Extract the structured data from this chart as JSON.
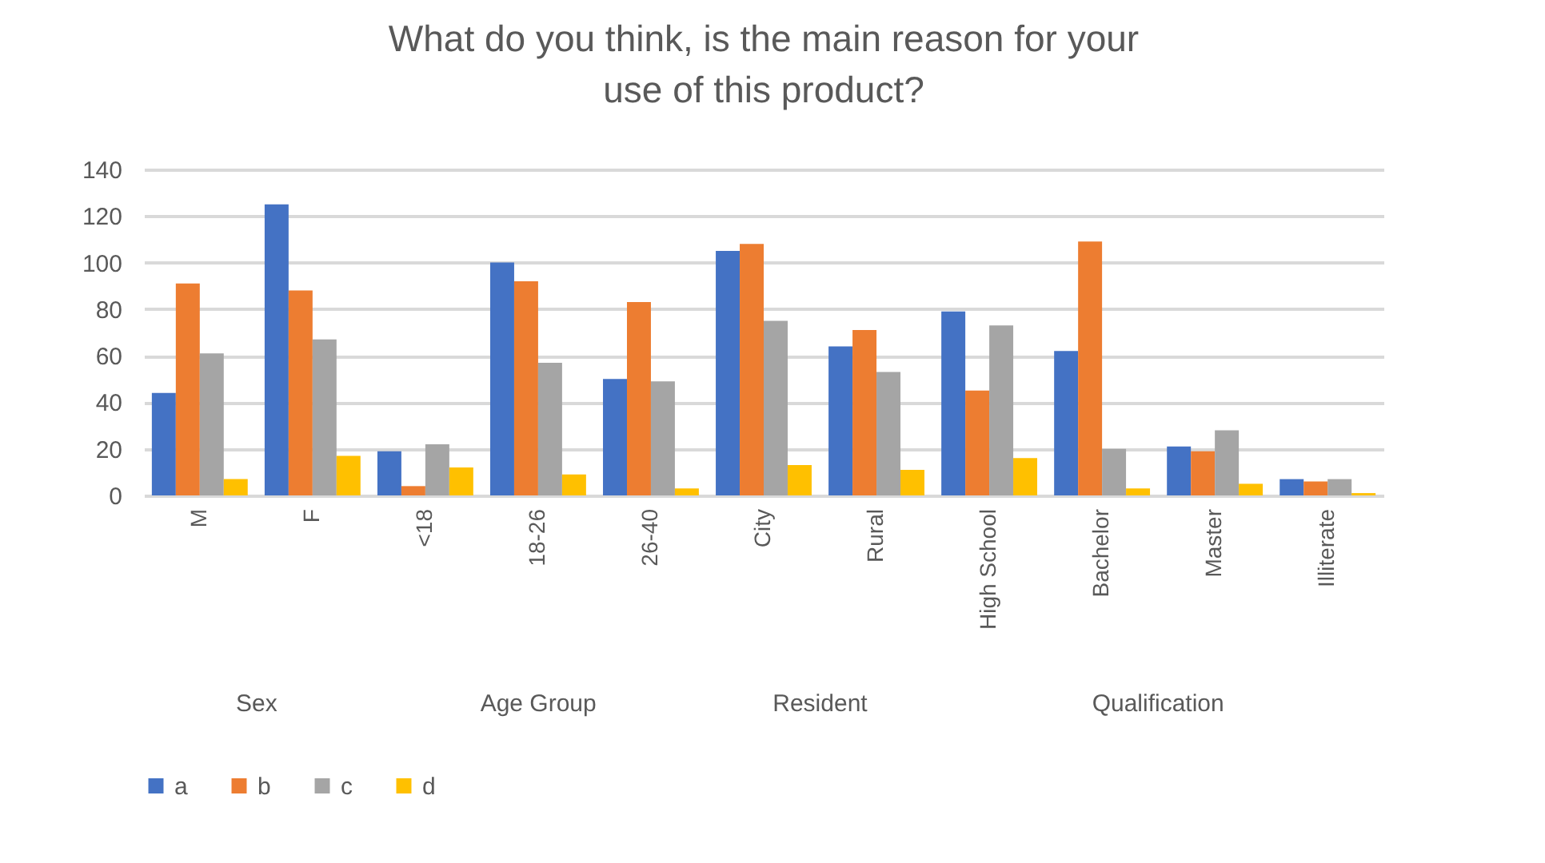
{
  "chart_data": {
    "type": "bar",
    "title": "What do you think, is the main reason for your use of this product?",
    "categories": [
      "M",
      "F",
      "<18",
      "18-26",
      "26-40",
      "City",
      "Rural",
      "High School",
      "Bachelor",
      "Master",
      "Illiterate"
    ],
    "series": [
      {
        "name": "a",
        "color": "#4472c4",
        "values": [
          44,
          125,
          19,
          100,
          50,
          105,
          64,
          79,
          62,
          21,
          7
        ]
      },
      {
        "name": "b",
        "color": "#ed7d31",
        "values": [
          91,
          88,
          4,
          92,
          83,
          108,
          71,
          45,
          109,
          19,
          6
        ]
      },
      {
        "name": "c",
        "color": "#a5a5a5",
        "values": [
          61,
          67,
          22,
          57,
          49,
          75,
          53,
          73,
          20,
          28,
          7
        ]
      },
      {
        "name": "d",
        "color": "#ffc000",
        "values": [
          7,
          17,
          12,
          9,
          3,
          13,
          11,
          16,
          3,
          5,
          1
        ]
      }
    ],
    "annotations": [
      "Sex",
      "Age Group",
      "Resident",
      "Qualification"
    ],
    "ylim": [
      0,
      140
    ],
    "yticks": [
      0,
      20,
      40,
      60,
      80,
      100,
      120,
      140
    ],
    "grid": "y",
    "legend": "bottom"
  }
}
